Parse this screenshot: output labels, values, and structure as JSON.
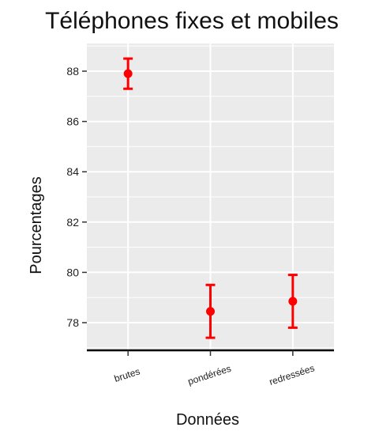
{
  "chart_data": {
    "type": "scatter",
    "title": "Téléphones fixes et mobiles",
    "xlabel": "Données",
    "ylabel": "Pourcentages",
    "categories": [
      "brutes",
      "pondérées",
      "redressées"
    ],
    "values": [
      87.9,
      78.45,
      78.85
    ],
    "lower": [
      87.3,
      77.4,
      77.8
    ],
    "upper": [
      88.5,
      79.5,
      79.9
    ],
    "yticks": [
      78,
      80,
      82,
      84,
      86,
      88
    ],
    "ylim": [
      76.9,
      89.1
    ],
    "grid": true,
    "marker_color": "#ff0000",
    "panel_color": "#ebebeb",
    "grid_color": "#ffffff"
  }
}
